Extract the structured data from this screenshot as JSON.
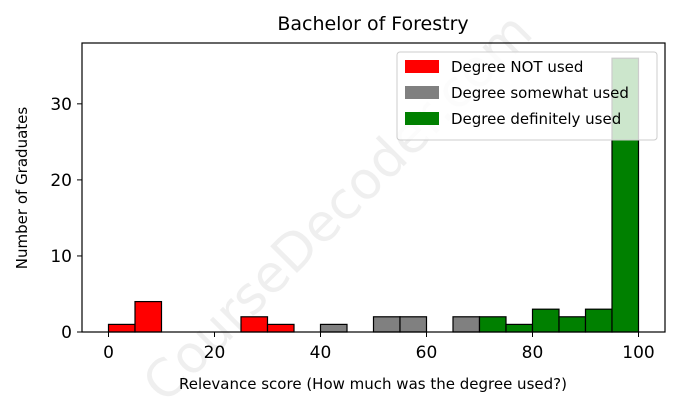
{
  "chart_data": {
    "type": "bar",
    "title": "Bachelor of Forestry",
    "xlabel": "Relevance score (How much was the degree used?)",
    "ylabel": "Number of Graduates",
    "xlim": [
      -5,
      105
    ],
    "ylim": [
      0,
      38
    ],
    "xticks": [
      0,
      20,
      40,
      60,
      80,
      100
    ],
    "yticks": [
      0,
      10,
      20,
      30
    ],
    "bin_width": 5,
    "legend_position": "top-right",
    "watermark": "CourseDecoder.com",
    "series": [
      {
        "name": "Degree NOT used",
        "color": "#ff0000",
        "bins": [
          {
            "x_start": 0,
            "count": 1
          },
          {
            "x_start": 5,
            "count": 4
          },
          {
            "x_start": 25,
            "count": 2
          },
          {
            "x_start": 30,
            "count": 1
          }
        ]
      },
      {
        "name": "Degree somewhat used",
        "color": "#808080",
        "bins": [
          {
            "x_start": 40,
            "count": 1
          },
          {
            "x_start": 50,
            "count": 2
          },
          {
            "x_start": 55,
            "count": 2
          },
          {
            "x_start": 65,
            "count": 2
          }
        ]
      },
      {
        "name": "Degree definitely used",
        "color": "#008000",
        "bins": [
          {
            "x_start": 70,
            "count": 2
          },
          {
            "x_start": 75,
            "count": 1
          },
          {
            "x_start": 80,
            "count": 3
          },
          {
            "x_start": 85,
            "count": 2
          },
          {
            "x_start": 90,
            "count": 3
          },
          {
            "x_start": 95,
            "count": 36
          }
        ]
      }
    ]
  }
}
